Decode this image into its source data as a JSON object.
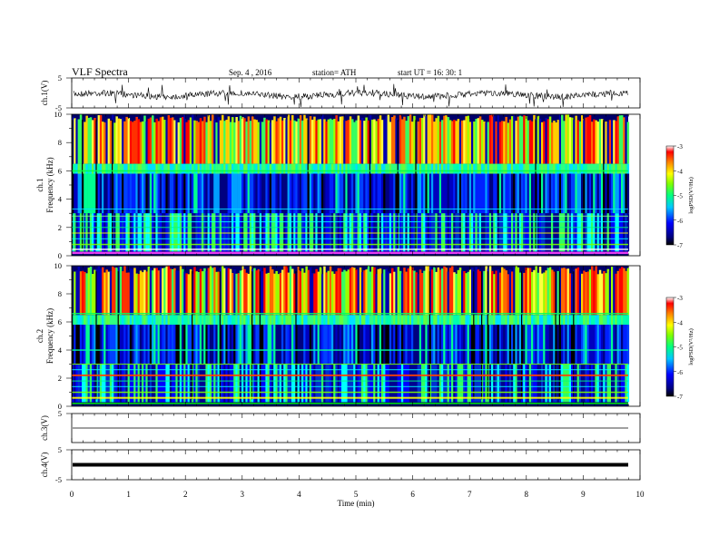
{
  "header": {
    "title": "VLF  Spectra",
    "date": "Sep. 4  , 2016",
    "station": "station= ATH",
    "start": "start  UT  =   16: 30: 1"
  },
  "chart_data": [
    {
      "type": "line",
      "panel": "ch1-waveform",
      "ylabel": "ch.1(V)",
      "ylim": [
        -5,
        5
      ],
      "yticks": [
        "5",
        "-5"
      ],
      "xlim": [
        0,
        10
      ]
    },
    {
      "type": "heatmap",
      "panel": "ch1-spectrogram",
      "ylabel_top": "ch.1",
      "ylabel": "Frequency  (kHz)",
      "ylim": [
        0,
        10
      ],
      "yticks": [
        "0",
        "2",
        "4",
        "6",
        "8",
        "10"
      ],
      "xlim": [
        0,
        10
      ],
      "colorbar": {
        "label": "logPSD(V²/Hz)",
        "range": [
          -7,
          -3
        ],
        "ticks": [
          "-3",
          "-4",
          "-5",
          "-6",
          "-7"
        ]
      }
    },
    {
      "type": "heatmap",
      "panel": "ch2-spectrogram",
      "ylabel_top": "ch.2",
      "ylabel": "Frequency  (kHz)",
      "ylim": [
        0,
        10
      ],
      "yticks": [
        "0",
        "2",
        "4",
        "6",
        "8",
        "10"
      ],
      "xlim": [
        0,
        10
      ],
      "colorbar": {
        "label": "logPSD(V²/Hz)",
        "range": [
          -7,
          -3
        ],
        "ticks": [
          "-3",
          "-4",
          "-5",
          "-6",
          "-7"
        ]
      }
    },
    {
      "type": "line",
      "panel": "ch3-waveform",
      "ylabel": "ch.3(V)",
      "ylim": [
        -5,
        5
      ],
      "yticks": [
        "5"
      ],
      "xlim": [
        0,
        10
      ]
    },
    {
      "type": "line",
      "panel": "ch4-waveform",
      "ylabel": "ch.4(V)",
      "ylim": [
        -5,
        5
      ],
      "yticks": [
        "5",
        "-5"
      ],
      "xlim": [
        0,
        10
      ],
      "xlabel": "Time  (min)",
      "xticks": [
        "0",
        "1",
        "2",
        "3",
        "4",
        "5",
        "6",
        "7",
        "8",
        "9",
        "10"
      ]
    }
  ]
}
